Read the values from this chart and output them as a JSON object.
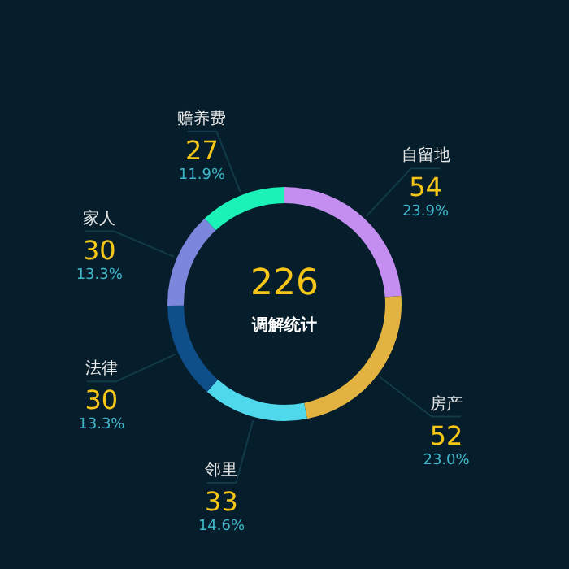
{
  "chart_data": {
    "type": "donut",
    "title": "226",
    "subtitle": "调解统计",
    "categories": [
      "自留地",
      "房产",
      "邻里",
      "法律",
      "家人",
      "赡养费"
    ],
    "values": [
      54,
      52,
      33,
      30,
      30,
      27
    ],
    "colors": [
      "#c38ef0",
      "#e3b341",
      "#4fd8ec",
      "#0e4f8a",
      "#7b86dd",
      "#1af2b8"
    ],
    "data_labels": true,
    "annotations": [
      {
        "text": "23.9%",
        "x": "自留地"
      },
      {
        "text": "23.0%",
        "x": "房产"
      },
      {
        "text": "14.6%",
        "x": "邻里"
      },
      {
        "text": "13.3%",
        "x": "法律"
      },
      {
        "text": "13.3%",
        "x": "家人"
      },
      {
        "text": "11.9%",
        "x": "赡养费"
      }
    ]
  }
}
